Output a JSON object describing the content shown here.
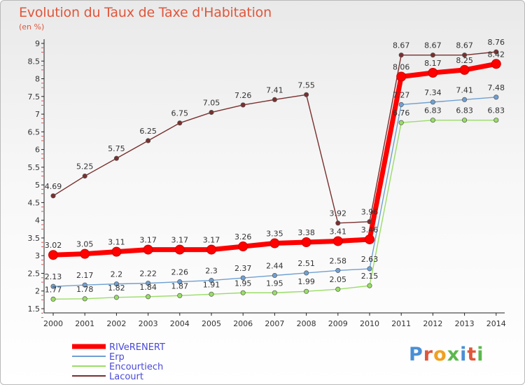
{
  "title": "Evolution du Taux de Taxe d'Habitation",
  "subtitle": "(en %)",
  "logo": "Proxiti",
  "chart_data": {
    "type": "line",
    "title": "Evolution du Taux de Taxe d'Habitation",
    "subtitle": "(en %)",
    "xlabel": "",
    "ylabel": "",
    "categories": [
      "2000",
      "2001",
      "2002",
      "2003",
      "2004",
      "2005",
      "2006",
      "2007",
      "2008",
      "2009",
      "2010",
      "2011",
      "2012",
      "2013",
      "2014"
    ],
    "ylim": [
      1.5,
      9
    ],
    "yticks": [
      1.5,
      2,
      2.5,
      3,
      3.5,
      4,
      4.5,
      5,
      5.5,
      6,
      6.5,
      7,
      7.5,
      8,
      8.5,
      9
    ],
    "grid": false,
    "legend_position": "bottom-left",
    "series": [
      {
        "name": "RIVeRENERT",
        "color": "#ff0000",
        "values": [
          3.02,
          3.05,
          3.11,
          3.17,
          3.17,
          3.17,
          3.26,
          3.35,
          3.38,
          3.41,
          3.46,
          8.06,
          8.17,
          8.25,
          8.42
        ],
        "labels": [
          "3.02",
          "3.05",
          "3.11",
          "3.17",
          "3.17",
          "3.17",
          "3.26",
          "3.35",
          "3.38",
          "3.41",
          "3.46",
          "8.06",
          "8.17",
          "8.25",
          "8.42"
        ]
      },
      {
        "name": "Erp",
        "color": "#6fa0d2",
        "values": [
          2.13,
          2.17,
          2.2,
          2.22,
          2.26,
          2.3,
          2.37,
          2.44,
          2.51,
          2.58,
          2.63,
          7.27,
          7.34,
          7.41,
          7.48
        ],
        "labels": [
          "2.13",
          "2.17",
          "2.2",
          "2.22",
          "2.26",
          "2.3",
          "2.37",
          "2.44",
          "2.51",
          "2.58",
          "2.63",
          "7.27",
          "7.34",
          "7.41",
          "7.48"
        ]
      },
      {
        "name": "Encourtiech",
        "color": "#99dd66",
        "values": [
          1.77,
          1.78,
          1.82,
          1.84,
          1.87,
          1.91,
          1.95,
          1.95,
          1.99,
          2.05,
          2.15,
          6.76,
          6.83,
          6.83,
          6.83
        ],
        "labels": [
          "1.77",
          "1.78",
          "1.82",
          "1.84",
          "1.87",
          "1.91",
          "1.95",
          "1.95",
          "1.99",
          "2.05",
          "2.15",
          "6.76",
          "6.83",
          "6.83",
          "6.83"
        ]
      },
      {
        "name": "Lacourt",
        "color": "#7a2f2f",
        "values": [
          4.69,
          5.25,
          5.75,
          6.25,
          6.75,
          7.05,
          7.26,
          7.41,
          7.55,
          3.92,
          3.96,
          8.67,
          8.67,
          8.67,
          8.76
        ],
        "labels": [
          "4.69",
          "5.25",
          "5.75",
          "6.25",
          "6.75",
          "7.05",
          "7.26",
          "7.41",
          "7.55",
          "3.92",
          "3.96",
          "8.67",
          "8.67",
          "8.67",
          "8.76"
        ]
      }
    ]
  }
}
